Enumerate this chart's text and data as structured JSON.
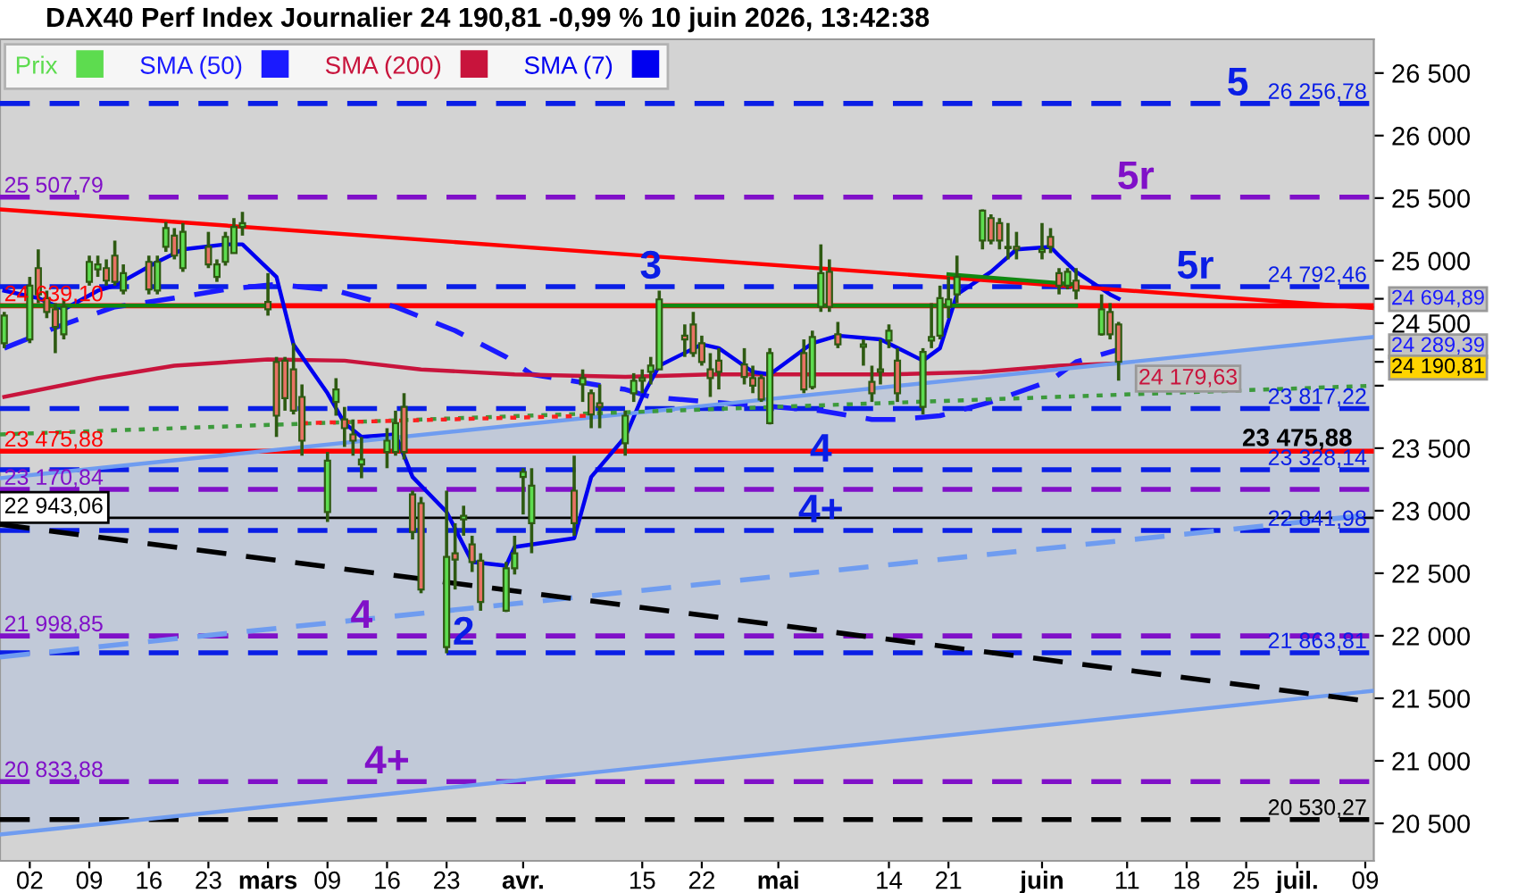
{
  "chart_data": {
    "type": "candlestick",
    "title": "DAX40 Perf Index Journalier 24 190,81 -0,99 % 10 juin 2026, 13:42:38",
    "xlim": [
      "2026-01-29T12:00",
      "2026-07-10"
    ],
    "xticks": [
      {
        "value": "2026-02-02",
        "label": "02"
      },
      {
        "value": "2026-02-09",
        "label": "09"
      },
      {
        "value": "2026-02-16",
        "label": "16"
      },
      {
        "value": "2026-02-23",
        "label": "23"
      },
      {
        "value": "2026-03-02",
        "label": "mars"
      },
      {
        "value": "2026-03-09",
        "label": "09"
      },
      {
        "value": "2026-03-16",
        "label": "16"
      },
      {
        "value": "2026-03-23",
        "label": "23"
      },
      {
        "value": "2026-04-01",
        "label": "avr."
      },
      {
        "value": "2026-04-15",
        "label": "15"
      },
      {
        "value": "2026-04-22",
        "label": "22"
      },
      {
        "value": "2026-05-01",
        "label": "mai"
      },
      {
        "value": "2026-05-14",
        "label": "14"
      },
      {
        "value": "2026-05-21",
        "label": "21"
      },
      {
        "value": "2026-06-01",
        "label": "juin"
      },
      {
        "value": "2026-06-11",
        "label": "11"
      },
      {
        "value": "2026-06-18",
        "label": "18"
      },
      {
        "value": "2026-06-25",
        "label": "25"
      },
      {
        "value": "2026-07-01",
        "label": "juil."
      },
      {
        "value": "2026-07-09",
        "label": "09"
      }
    ],
    "ylim": [
      20200,
      26770
    ],
    "yticks": [
      {
        "value": 20500,
        "label": "20 500"
      },
      {
        "value": 21000,
        "label": "21 000"
      },
      {
        "value": 21500,
        "label": "21 500"
      },
      {
        "value": 22000,
        "label": "22 000"
      },
      {
        "value": 22500,
        "label": "22 500"
      },
      {
        "value": 23000,
        "label": "23 000"
      },
      {
        "value": 23500,
        "label": "23 500"
      },
      {
        "value": 24000,
        "label": null
      },
      {
        "value": 24500,
        "label": "24 500"
      },
      {
        "value": 25000,
        "label": "25 000"
      },
      {
        "value": 25500,
        "label": "25 500"
      },
      {
        "value": 26000,
        "label": "26 000"
      },
      {
        "value": 26500,
        "label": "26 500"
      },
      {
        "value": 24694.89,
        "label": "24 694,89"
      },
      {
        "value": 24289.39,
        "label": "24 289,39"
      },
      {
        "value": 24190.81,
        "label": "24 190,81"
      }
    ],
    "grid": false,
    "legend": "top left",
    "series": [
      {
        "name": "Prix",
        "colors": [
          "#5ddc4f",
          "#5ddc4f",
          "#e87264",
          "#e87264",
          "#e87264",
          "#5ddc4f",
          "#5ddc4f",
          "#5ddc4f",
          "#e87264",
          "#e87264",
          "#5ddc4f",
          "#e87264",
          "#5ddc4f",
          "#5ddc4f",
          "#e87264",
          "#5ddc4f",
          "#e87264",
          "#5ddc4f",
          "#5ddc4f",
          "#5ddc4f",
          "#5ddc4f",
          "#e87264",
          "#e87264",
          "#e87264",
          "#e87264",
          "#e87264",
          "#5ddc4f",
          "#5ddc4f",
          "#e87264",
          "#e87264",
          "#5ddc4f",
          "#5ddc4f",
          "#5ddc4f",
          "#e87264",
          "#e87264",
          "#e87264",
          "#5ddc4f",
          "#e87264",
          "#5ddc4f",
          "#e87264",
          "#e87264",
          "#5ddc4f",
          "#5ddc4f",
          "#5ddc4f",
          "#5ddc4f",
          "#e87264",
          "#5ddc4f",
          "#e87264",
          "#e87264",
          "#5ddc4f",
          "#5ddc4f",
          "#5ddc4f",
          "#5ddc4f",
          "#5ddc4f",
          "#e87264",
          "#e87264",
          "#e87264",
          "#e87264",
          "#e87264",
          "#e87264",
          "#e87264",
          "#e87264",
          "#5ddc4f",
          "#e87264",
          "#5ddc4f",
          "#5ddc4f",
          "#e87264",
          "#e87264",
          "#5ddc4f",
          "#e87264",
          "#5ddc4f",
          "#5ddc4f",
          "#e87264",
          "#5ddc4f",
          "#5ddc4f",
          "#5ddc4f",
          "#5ddc4f",
          "#5ddc4f",
          "#5ddc4f",
          "#e87264",
          "#e87264",
          "#5ddc4f",
          "#e87264",
          "#5ddc4f",
          "#e87264",
          "#e87264",
          "#5ddc4f",
          "#e87264",
          "#5ddc4f",
          "#e87264",
          "#e87264"
        ],
        "x": [
          "2026-01-30",
          "2026-02-02",
          "2026-02-03",
          "2026-02-04",
          "2026-02-05",
          "2026-02-06",
          "2026-02-09",
          "2026-02-10",
          "2026-02-11",
          "2026-02-12",
          "2026-02-13",
          "2026-02-16",
          "2026-02-17",
          "2026-02-18",
          "2026-02-19",
          "2026-02-20",
          "2026-02-23",
          "2026-02-24",
          "2026-02-25",
          "2026-02-26",
          "2026-02-27",
          "2026-03-02",
          "2026-03-03",
          "2026-03-04",
          "2026-03-05",
          "2026-03-06",
          "2026-03-09",
          "2026-03-10",
          "2026-03-11",
          "2026-03-12",
          "2026-03-13",
          "2026-03-16",
          "2026-03-17",
          "2026-03-18",
          "2026-03-19",
          "2026-03-20",
          "2026-03-23",
          "2026-03-24",
          "2026-03-25",
          "2026-03-26",
          "2026-03-27",
          "2026-03-30",
          "2026-03-31",
          "2026-04-01",
          "2026-04-02",
          "2026-04-07",
          "2026-04-08",
          "2026-04-09",
          "2026-04-10",
          "2026-04-13",
          "2026-04-14",
          "2026-04-15",
          "2026-04-16",
          "2026-04-17",
          "2026-04-20",
          "2026-04-21",
          "2026-04-22",
          "2026-04-23",
          "2026-04-24",
          "2026-04-27",
          "2026-04-28",
          "2026-04-29",
          "2026-04-30",
          "2026-05-04",
          "2026-05-05",
          "2026-05-06",
          "2026-05-07",
          "2026-05-08",
          "2026-05-11",
          "2026-05-12",
          "2026-05-13",
          "2026-05-14",
          "2026-05-15",
          "2026-05-18",
          "2026-05-19",
          "2026-05-20",
          "2026-05-21",
          "2026-05-22",
          "2026-05-25",
          "2026-05-26",
          "2026-05-27",
          "2026-05-28",
          "2026-05-29",
          "2026-06-01",
          "2026-06-02",
          "2026-06-03",
          "2026-06-04",
          "2026-06-05",
          "2026-06-08",
          "2026-06-09",
          "2026-06-10"
        ],
        "ohlc": [
          [
            24340,
            24590,
            24300,
            24560
          ],
          [
            24370,
            24870,
            24340,
            24800
          ],
          [
            24940,
            25090,
            24660,
            24730
          ],
          [
            24700,
            24760,
            24540,
            24590
          ],
          [
            24610,
            24660,
            24260,
            24470
          ],
          [
            24410,
            24690,
            24370,
            24630
          ],
          [
            24830,
            25040,
            24800,
            24990
          ],
          [
            24930,
            25040,
            24870,
            24970
          ],
          [
            24940,
            25010,
            24800,
            24840
          ],
          [
            25040,
            25160,
            24800,
            24830
          ],
          [
            24760,
            24970,
            24730,
            24900
          ],
          [
            24990,
            25040,
            24730,
            24770
          ],
          [
            24760,
            25040,
            24730,
            24990
          ],
          [
            25110,
            25310,
            25070,
            25260
          ],
          [
            25200,
            25260,
            25010,
            25040
          ],
          [
            24940,
            25300,
            24910,
            25230
          ],
          [
            25110,
            25230,
            24940,
            24970
          ],
          [
            24870,
            25010,
            24830,
            24970
          ],
          [
            24990,
            25230,
            24960,
            25190
          ],
          [
            25060,
            25340,
            25060,
            25270
          ],
          [
            25270,
            25390,
            25200,
            25300
          ],
          [
            24670,
            24900,
            24560,
            24610
          ],
          [
            24190,
            24230,
            23590,
            23760
          ],
          [
            24200,
            24230,
            23800,
            23900
          ],
          [
            24130,
            24340,
            23770,
            23800
          ],
          [
            23910,
            24010,
            23440,
            23560
          ],
          [
            22990,
            23470,
            22910,
            23400
          ],
          [
            23870,
            24060,
            23760,
            23970
          ],
          [
            23730,
            23830,
            23510,
            23660
          ],
          [
            23610,
            23730,
            23440,
            23560
          ],
          [
            23370,
            23590,
            23260,
            23410
          ],
          [
            23470,
            23660,
            23340,
            23560
          ],
          [
            23470,
            23800,
            23440,
            23700
          ],
          [
            23830,
            23940,
            23410,
            23470
          ],
          [
            23130,
            23160,
            22770,
            22830
          ],
          [
            23060,
            23110,
            22340,
            22370
          ],
          [
            21910,
            23160,
            21860,
            22630
          ],
          [
            22660,
            22900,
            22370,
            22610
          ],
          [
            22930,
            23040,
            22800,
            22960
          ],
          [
            22730,
            22800,
            22510,
            22590
          ],
          [
            22600,
            22660,
            22200,
            22270
          ],
          [
            22200,
            22590,
            22190,
            22540
          ],
          [
            22540,
            22800,
            22490,
            22660
          ],
          [
            23270,
            23340,
            22970,
            23310
          ],
          [
            22900,
            23340,
            22660,
            23200
          ],
          [
            23160,
            23440,
            22800,
            22900
          ],
          [
            24010,
            24130,
            23870,
            24060
          ],
          [
            23940,
            23970,
            23660,
            23770
          ],
          [
            23860,
            24010,
            23660,
            23830
          ],
          [
            23540,
            23800,
            23440,
            23760
          ],
          [
            23940,
            24100,
            23870,
            24040
          ],
          [
            24040,
            24130,
            23940,
            24060
          ],
          [
            24110,
            24230,
            24010,
            24160
          ],
          [
            24130,
            24760,
            24130,
            24690
          ],
          [
            24400,
            24490,
            24230,
            24370
          ],
          [
            24490,
            24590,
            24230,
            24260
          ],
          [
            24340,
            24400,
            24160,
            24190
          ],
          [
            24130,
            24260,
            23910,
            24060
          ],
          [
            24200,
            24300,
            23970,
            24110
          ],
          [
            24170,
            24300,
            24010,
            24070
          ],
          [
            24060,
            24160,
            23940,
            24000
          ],
          [
            24060,
            24090,
            23870,
            23890
          ],
          [
            23700,
            24300,
            23690,
            24260
          ],
          [
            24260,
            24370,
            23940,
            23970
          ],
          [
            23990,
            24440,
            23970,
            24390
          ],
          [
            24630,
            25130,
            24590,
            24900
          ],
          [
            24910,
            25010,
            24590,
            24630
          ],
          [
            24410,
            24510,
            24300,
            24330
          ],
          [
            24310,
            24370,
            24160,
            24330
          ],
          [
            24030,
            24160,
            23870,
            23940
          ],
          [
            24110,
            24370,
            24010,
            24130
          ],
          [
            24360,
            24490,
            24300,
            24440
          ],
          [
            24200,
            24300,
            23870,
            23940
          ],
          [
            23830,
            24300,
            23770,
            24270
          ],
          [
            24360,
            24660,
            24300,
            24390
          ],
          [
            24400,
            24800,
            24370,
            24700
          ],
          [
            24630,
            24870,
            24540,
            24690
          ],
          [
            24730,
            25040,
            24660,
            24870
          ],
          [
            25160,
            25410,
            25090,
            25400
          ],
          [
            25340,
            25370,
            25130,
            25160
          ],
          [
            25300,
            25340,
            25090,
            25160
          ],
          [
            25100,
            25300,
            25010,
            25110
          ],
          [
            25110,
            25230,
            25010,
            25090
          ],
          [
            25070,
            25300,
            25010,
            25090
          ],
          [
            25190,
            25260,
            25060,
            25110
          ],
          [
            24900,
            24940,
            24730,
            24800
          ],
          [
            24800,
            24940,
            24770,
            24910
          ],
          [
            24840,
            24940,
            24690,
            24760
          ],
          [
            24410,
            24730,
            24400,
            24610
          ],
          [
            24590,
            24660,
            24370,
            24410
          ],
          [
            24490,
            24510,
            24040,
            24190.81
          ]
        ]
      },
      {
        "name": "SMA (50)",
        "type": "line",
        "color": "#1a1aff",
        "line_style": "dashed",
        "x": [
          "2026-01-30",
          "2026-02-06",
          "2026-02-12",
          "2026-02-19",
          "2026-02-25",
          "2026-03-03",
          "2026-03-10",
          "2026-03-17",
          "2026-03-24",
          "2026-03-30",
          "2026-04-02",
          "2026-04-13",
          "2026-04-16",
          "2026-04-23",
          "2026-04-29",
          "2026-05-06",
          "2026-05-12",
          "2026-05-15",
          "2026-05-20",
          "2026-05-26",
          "2026-06-02",
          "2026-06-05",
          "2026-06-10"
        ],
        "values": [
          24300,
          24490,
          24630,
          24700,
          24770,
          24810,
          24760,
          24630,
          24440,
          24230,
          24090,
          23970,
          23910,
          23870,
          23840,
          23800,
          23730,
          23730,
          23760,
          23870,
          24040,
          24190,
          24289.39
        ]
      },
      {
        "name": "SMA (200)",
        "type": "line",
        "color": "#c8143c",
        "line_style": "solid",
        "x": [
          "2026-01-30",
          "2026-02-10",
          "2026-02-19",
          "2026-03-02",
          "2026-03-11",
          "2026-03-20",
          "2026-03-31",
          "2026-04-13",
          "2026-04-23",
          "2026-05-05",
          "2026-05-14",
          "2026-05-25",
          "2026-06-03",
          "2026-06-10"
        ],
        "values": [
          23910,
          24060,
          24160,
          24210,
          24200,
          24130,
          24090,
          24070,
          24090,
          24090,
          24090,
          24110,
          24160,
          24179.63
        ],
        "value_labels": [
          null,
          null,
          null,
          null,
          null,
          null,
          null,
          null,
          null,
          null,
          null,
          null,
          null,
          "24 179,63"
        ]
      },
      {
        "name": "SMA (7)",
        "type": "line",
        "color": "#0000f0",
        "line_style": "solid",
        "x": [
          "2026-01-30",
          "2026-02-03",
          "2026-02-06",
          "2026-02-10",
          "2026-02-12",
          "2026-02-17",
          "2026-02-20",
          "2026-02-25",
          "2026-02-27",
          "2026-03-03",
          "2026-03-05",
          "2026-03-09",
          "2026-03-11",
          "2026-03-13",
          "2026-03-17",
          "2026-03-19",
          "2026-03-23",
          "2026-03-26",
          "2026-03-30",
          "2026-03-31",
          "2026-04-07",
          "2026-04-09",
          "2026-04-13",
          "2026-04-15",
          "2026-04-17",
          "2026-04-22",
          "2026-04-24",
          "2026-04-28",
          "2026-04-30",
          "2026-05-05",
          "2026-05-08",
          "2026-05-13",
          "2026-05-18",
          "2026-05-20",
          "2026-05-22",
          "2026-05-26",
          "2026-05-29",
          "2026-06-02",
          "2026-06-03",
          "2026-06-05",
          "2026-06-09",
          "2026-06-10"
        ],
        "values": [
          24760,
          24700,
          24610,
          24760,
          24800,
          24990,
          25090,
          25130,
          25130,
          24870,
          24330,
          23940,
          23700,
          23590,
          23610,
          23270,
          22990,
          22590,
          22560,
          22710,
          22780,
          23270,
          23590,
          23910,
          24160,
          24330,
          24300,
          24110,
          24090,
          24340,
          24400,
          24370,
          24200,
          24300,
          24730,
          24910,
          25090,
          25110,
          25040,
          24910,
          24730,
          24694.89
        ]
      },
      {
        "type": "line",
        "color": "#ff0000",
        "line_style": "solid",
        "x": [
          "2026-01-29T12:00",
          "2026-07-10"
        ],
        "values": [
          25410,
          24620
        ]
      },
      {
        "type": "line",
        "color": "#6f9cf0",
        "line_style": "solid",
        "x": [
          "2026-01-29T12:00",
          "2026-07-10"
        ],
        "values": [
          23260,
          24390
        ],
        "lower": [
          20410,
          21560
        ],
        "upper": [
          23260,
          24390
        ]
      },
      {
        "type": "line",
        "color": "#6f9cf0",
        "line_style": "solid",
        "x": [
          "2026-01-29T12:00",
          "2026-07-10"
        ],
        "values": [
          20410,
          21560
        ]
      },
      {
        "type": "line",
        "color": "#6f9cf0",
        "line_style": "dashed",
        "x": [
          "2026-01-29T12:00",
          "2026-07-10"
        ],
        "values": [
          21830,
          22970
        ]
      },
      {
        "type": "line",
        "color": "#000000",
        "line_style": "dashed",
        "x": [
          "2026-01-29T12:00",
          "2026-07-10"
        ],
        "values": [
          22890,
          21470
        ]
      },
      {
        "type": "line",
        "color": "#3c9a3c",
        "line_style": "dotted",
        "x": [
          "2026-01-29T12:00",
          "2026-07-10"
        ],
        "values": [
          23610,
          24000
        ]
      },
      {
        "type": "line",
        "color": "#ff2020",
        "line_style": "dotted",
        "x": [
          "2026-03-06",
          "2026-04-09"
        ],
        "values": [
          23700,
          23760
        ]
      },
      {
        "type": "line",
        "color": "#118811",
        "line_style": "solid",
        "x": [
          "2026-01-29T12:00",
          "2026-03-02"
        ],
        "values": [
          24640,
          24640
        ]
      },
      {
        "type": "line",
        "color": "#118811",
        "line_style": "solid",
        "x": [
          "2026-04-17",
          "2026-06-05"
        ],
        "values": [
          24640,
          24640
        ]
      },
      {
        "type": "line",
        "color": "#118811",
        "line_style": "solid",
        "x": [
          "2026-05-21",
          "2026-06-05"
        ],
        "values": [
          24890,
          24810
        ]
      }
    ],
    "ref_lines": [
      {
        "axis": "y",
        "value": 26256.78,
        "label": "26 256,78",
        "color": "#0a1ee6",
        "line_style": "dashed"
      },
      {
        "axis": "y",
        "value": 25507.79,
        "label": "25 507,79",
        "color": "#8010c8",
        "line_style": "dashed"
      },
      {
        "axis": "y",
        "value": 24792.46,
        "label": "24 792,46",
        "color": "#0a1ee6",
        "line_style": "dashed"
      },
      {
        "axis": "y",
        "value": 24639.1,
        "label": "24 639,10",
        "color": "#ff0000",
        "line_style": "solid"
      },
      {
        "axis": "y",
        "value": 23817.22,
        "label": "23 817,22",
        "color": "#0a1ee6",
        "line_style": "dashed"
      },
      {
        "axis": "y",
        "value": 23475.88,
        "label": "23 475,88",
        "color": "#ff0000",
        "line_style": "solid"
      },
      {
        "axis": "y",
        "value": 23328.14,
        "label": "23 328,14",
        "color": "#0a1ee6",
        "line_style": "dashed"
      },
      {
        "axis": "y",
        "value": 23170.84,
        "label": "23 170,84",
        "color": "#8010c8",
        "line_style": "dashed"
      },
      {
        "axis": "y",
        "value": 22943.06,
        "label": "22 943,06",
        "color": "#000000",
        "line_style": "solid"
      },
      {
        "axis": "y",
        "value": 22841.98,
        "label": "22 841,98",
        "color": "#0a1ee6",
        "line_style": "dashed"
      },
      {
        "axis": "y",
        "value": 21998.85,
        "label": "21 998,85",
        "color": "#8010c8",
        "line_style": "dashed"
      },
      {
        "axis": "y",
        "value": 21863.81,
        "label": "21 863,81",
        "color": "#0a1ee6",
        "line_style": "dashed"
      },
      {
        "axis": "y",
        "value": 20833.88,
        "label": "20 833,88",
        "color": "#8010c8",
        "line_style": "dashed"
      },
      {
        "axis": "y",
        "value": 20530.27,
        "label": "20 530,27",
        "color": "#000000",
        "line_style": "dashed"
      }
    ],
    "annotations": [
      {
        "text": "5",
        "x": "2026-06-24",
        "y": 26256.78
      },
      {
        "text": "5r",
        "x": "2026-06-12",
        "y": 25507.79
      },
      {
        "text": "3",
        "x": "2026-04-16",
        "y": 24792.46
      },
      {
        "text": "5r",
        "x": "2026-06-19",
        "y": 24792.46
      },
      {
        "text": "4",
        "x": "2026-05-06",
        "y": 23328.14
      },
      {
        "text": "4+",
        "x": "2026-05-06",
        "y": 22841.98
      },
      {
        "text": "4",
        "x": "2026-03-13",
        "y": 21998.85
      },
      {
        "text": "2",
        "x": "2026-03-25",
        "y": 21863.81
      },
      {
        "text": "4+",
        "x": "2026-03-16",
        "y": 20833.88
      },
      {
        "text": "23 475,88",
        "x": "2026-07-01",
        "y": 23475.88
      }
    ]
  }
}
